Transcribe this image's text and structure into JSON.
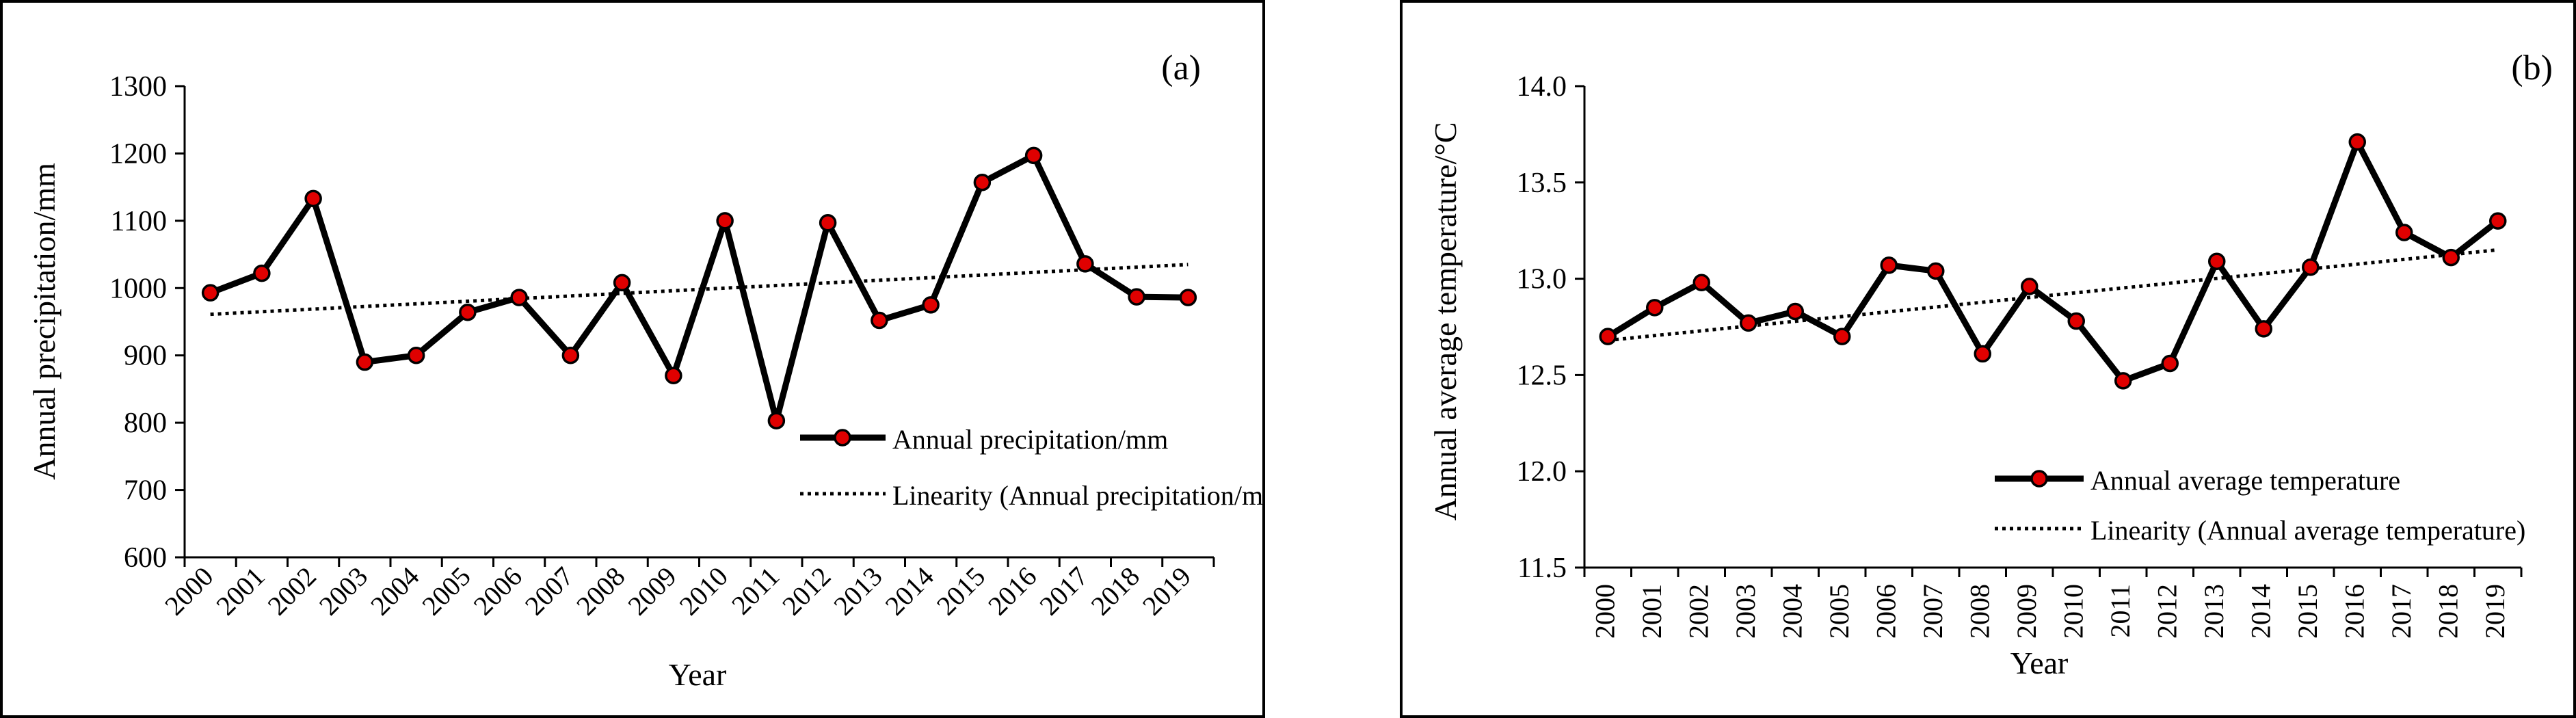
{
  "chart_data": [
    {
      "type": "line",
      "panel_label": "(a)",
      "x": [
        "2000",
        "2001",
        "2002",
        "2003",
        "2004",
        "2005",
        "2006",
        "2007",
        "2008",
        "2009",
        "2010",
        "2011",
        "2012",
        "2013",
        "2014",
        "2015",
        "2016",
        "2017",
        "2018",
        "2019"
      ],
      "series": [
        {
          "name": "Annual precipitation/mm",
          "values": [
            993,
            1022,
            1133,
            890,
            900,
            964,
            986,
            900,
            1008,
            870,
            1100,
            803,
            1097,
            952,
            975,
            1157,
            1197,
            1036,
            987,
            986
          ]
        },
        {
          "name": "Linearity (Annual precipitation/mm)",
          "line_style": "dotted",
          "trend": [
            961,
            1035
          ]
        }
      ],
      "xlabel": "Year",
      "ylabel": "Annual precipitation/mm",
      "ylim": [
        600,
        1300
      ],
      "yticks": [
        "600",
        "700",
        "800",
        "900",
        "1000",
        "1100",
        "1200",
        "1300"
      ],
      "grid": false,
      "legend_position": "lower-right"
    },
    {
      "type": "line",
      "panel_label": "(b)",
      "x": [
        "2000",
        "2001",
        "2002",
        "2003",
        "2004",
        "2005",
        "2006",
        "2007",
        "2008",
        "2009",
        "2010",
        "2011",
        "2012",
        "2013",
        "2014",
        "2015",
        "2016",
        "2017",
        "2018",
        "2019"
      ],
      "series": [
        {
          "name": "Annual average temperature",
          "values": [
            12.7,
            12.85,
            12.98,
            12.77,
            12.83,
            12.7,
            13.07,
            13.04,
            12.61,
            12.96,
            12.78,
            12.47,
            12.56,
            13.09,
            12.74,
            13.06,
            13.71,
            13.24,
            13.11,
            13.3
          ]
        },
        {
          "name": "Linearity (Annual average temperature)",
          "line_style": "dotted",
          "trend": [
            12.68,
            13.15
          ]
        }
      ],
      "xlabel": "Year",
      "ylabel": "Annual average temperature/°C",
      "ylim": [
        11.5,
        14.0
      ],
      "yticks": [
        "11.5",
        "12.0",
        "12.5",
        "13.0",
        "13.5",
        "14.0"
      ],
      "grid": false,
      "legend_position": "lower-right"
    }
  ]
}
